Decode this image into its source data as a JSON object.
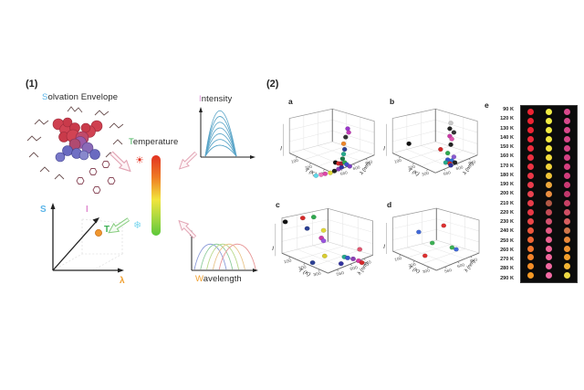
{
  "panel1": {
    "label": "(1)",
    "solvation_title": {
      "first": "S",
      "rest": "olvation Envelope",
      "first_color": "#5ab4e8"
    },
    "temperature_title": {
      "first": "T",
      "rest": "emperature",
      "first_color": "#3cb054"
    },
    "intensity_title": {
      "first": "I",
      "rest": "ntensity",
      "first_color": "#d990d4"
    },
    "wavelength_title": {
      "first": "W",
      "rest": "avelength",
      "first_color": "#f0a030"
    },
    "icons": {
      "hot": "☀",
      "cold": "❄",
      "hot_color": "#e03020",
      "cold_color": "#7fd8ee"
    },
    "gradient_bar": {
      "top_color": "#e23222",
      "mid_color": "#f2e43c",
      "bottom_color": "#5cc83a"
    },
    "axes3d": {
      "y_axis": "S",
      "diagonal_axis": "I",
      "x_axis": "λ",
      "point": "T",
      "y_color": "#5ab4e8",
      "diag_color": "#e08ad0",
      "x_color": "#f0a030",
      "point_color": "#3cb054",
      "dot_color": "#f0962e"
    },
    "intensity_plot": {
      "curve_color": "#5aa5c8",
      "curve_count": 7
    },
    "wavelength_plot": {
      "curve_colors": [
        "#8a9ad8",
        "#8ccb9a",
        "#b8d888",
        "#e8c388",
        "#e89898"
      ]
    }
  },
  "panel2": {
    "label": "(2)"
  },
  "chart_data": [
    {
      "id": "a",
      "label": "a",
      "type": "scatter3d",
      "xlabel": "T (K)",
      "ylabel": "λ (nm)",
      "zlabel": "I",
      "x_ticks": [
        "100",
        "200",
        "300"
      ],
      "y_ticks": [
        "560",
        "600",
        "640"
      ],
      "points": [
        [
          36,
          79,
          "#5fd8ea"
        ],
        [
          41,
          78,
          "#ee77bb"
        ],
        [
          45,
          77,
          "#dd44aa"
        ],
        [
          50,
          76,
          "#e0d838"
        ],
        [
          54,
          74,
          "#222222"
        ],
        [
          58,
          72,
          "#8a3fb5"
        ],
        [
          61,
          70,
          "#32339f"
        ],
        [
          55,
          65,
          "#111111"
        ],
        [
          58,
          66,
          "#d42a2a"
        ],
        [
          61,
          66,
          "#a32136"
        ],
        [
          64,
          65,
          "#2fa84e"
        ],
        [
          66,
          67,
          "#3a55cc"
        ],
        [
          69,
          69,
          "#7a3fc0"
        ],
        [
          62,
          61,
          "#1f7a48"
        ],
        [
          63,
          56,
          "#27a98c"
        ],
        [
          64,
          51,
          "#2b3f93"
        ],
        [
          63,
          45,
          "#ec862a"
        ],
        [
          65,
          38,
          "#333333"
        ],
        [
          68,
          33,
          "#c43ab8"
        ],
        [
          67,
          29,
          "#9a35c9"
        ]
      ]
    },
    {
      "id": "b",
      "label": "b",
      "type": "scatter3d",
      "xlabel": "T (K)",
      "ylabel": "λ (nm)",
      "zlabel": "I",
      "x_ticks": [
        "100",
        "200",
        "300"
      ],
      "y_ticks": [
        "560",
        "600",
        "640"
      ],
      "points": [
        [
          67,
          23,
          "#c9c9c9"
        ],
        [
          66,
          29,
          "#222222"
        ],
        [
          70,
          33,
          "#333333"
        ],
        [
          66,
          37,
          "#cc3aa8"
        ],
        [
          68,
          40,
          "#e055b0"
        ],
        [
          67,
          46,
          "#222222"
        ],
        [
          57,
          51,
          "#d42a2a"
        ],
        [
          64,
          55,
          "#2fa84e"
        ],
        [
          26,
          45,
          "#111111"
        ],
        [
          70,
          59,
          "#8a5ad0"
        ],
        [
          64,
          62,
          "#3a55cc"
        ],
        [
          68,
          63,
          "#2b6fd4"
        ],
        [
          62,
          65,
          "#27a98c"
        ],
        [
          66,
          66,
          "#d42a2a"
        ],
        [
          71,
          65,
          "#222222"
        ],
        [
          67,
          68,
          "#32339f"
        ]
      ]
    },
    {
      "id": "c",
      "label": "c",
      "type": "scatter3d",
      "xlabel": "T (K)",
      "ylabel": "λ (nm)",
      "zlabel": "I",
      "x_ticks": [
        "100",
        "200",
        "300"
      ],
      "y_ticks": [
        "560",
        "600",
        "640"
      ],
      "points": [
        [
          13,
          22,
          "#111111"
        ],
        [
          29,
          18,
          "#d42a2a"
        ],
        [
          39,
          17,
          "#2fa84e"
        ],
        [
          33,
          29,
          "#2b3f93"
        ],
        [
          48,
          31,
          "#e0d838"
        ],
        [
          46,
          39,
          "#cc3aa8"
        ],
        [
          48,
          42,
          "#9a55dd"
        ],
        [
          81,
          51,
          "#e05570"
        ],
        [
          49,
          58,
          "#d8cc30"
        ],
        [
          67,
          59,
          "#27a98c"
        ],
        [
          70,
          60,
          "#3a55cc"
        ],
        [
          75,
          61,
          "#8a3fb5"
        ],
        [
          80,
          63,
          "#d838a0"
        ],
        [
          83,
          65,
          "#d42a2a"
        ],
        [
          38,
          65,
          "#2b3f93"
        ],
        [
          64,
          66,
          "#32339f"
        ]
      ]
    },
    {
      "id": "d",
      "label": "d",
      "type": "scatter3d",
      "xlabel": "T (K)",
      "ylabel": "λ (nm)",
      "zlabel": "I",
      "x_ticks": [
        "100",
        "200",
        "300"
      ],
      "y_ticks": [
        "560",
        "600",
        "640"
      ],
      "points": [
        [
          35,
          34,
          "#4169d8"
        ],
        [
          59,
          27,
          "#dc3030"
        ],
        [
          48,
          46,
          "#3cb054"
        ],
        [
          67,
          51,
          "#3cb054"
        ],
        [
          71,
          53,
          "#4169d8"
        ],
        [
          41,
          60,
          "#dc3030"
        ]
      ]
    },
    {
      "id": "e",
      "label": "e",
      "type": "color_table",
      "unit": "K",
      "rows": [
        {
          "temp": "90 K",
          "dots": [
            "#ee2433",
            "#f3ee45",
            "#d8498c"
          ]
        },
        {
          "temp": "120 K",
          "dots": [
            "#ee2433",
            "#f3ee45",
            "#d8498c"
          ]
        },
        {
          "temp": "130 K",
          "dots": [
            "#ee2433",
            "#f3ec42",
            "#d8478a"
          ]
        },
        {
          "temp": "140 K",
          "dots": [
            "#ed2a3a",
            "#f3e940",
            "#d74688"
          ]
        },
        {
          "temp": "150 K",
          "dots": [
            "#ed2d3d",
            "#f2e43e",
            "#d64486"
          ]
        },
        {
          "temp": "160 K",
          "dots": [
            "#ec3040",
            "#f2dd3c",
            "#d54284"
          ]
        },
        {
          "temp": "170 K",
          "dots": [
            "#ec3343",
            "#f1d33a",
            "#d44080"
          ]
        },
        {
          "temp": "180 K",
          "dots": [
            "#eb3747",
            "#efc338",
            "#d23d7c"
          ]
        },
        {
          "temp": "190 K",
          "dots": [
            "#ea3c4c",
            "#eca73c",
            "#cc3a74"
          ]
        },
        {
          "temp": "200 K",
          "dots": [
            "#e9424f",
            "#e98e40",
            "#c2386c"
          ]
        },
        {
          "temp": "210 K",
          "dots": [
            "#e73d4a",
            "#b25845",
            "#c84166"
          ]
        },
        {
          "temp": "220 K",
          "dots": [
            "#e83946",
            "#c44b56",
            "#ce4f64"
          ]
        },
        {
          "temp": "230 K",
          "dots": [
            "#ea4748",
            "#d45270",
            "#d75f60"
          ]
        },
        {
          "temp": "240 K",
          "dots": [
            "#ee573c",
            "#e55a84",
            "#d0764a"
          ]
        },
        {
          "temp": "250 K",
          "dots": [
            "#f16634",
            "#ec6190",
            "#e8883a"
          ]
        },
        {
          "temp": "260 K",
          "dots": [
            "#f3762e",
            "#ef6498",
            "#f09432"
          ]
        },
        {
          "temp": "270 K",
          "dots": [
            "#f4832a",
            "#f1669c",
            "#f4a02c"
          ]
        },
        {
          "temp": "280 K",
          "dots": [
            "#f58e27",
            "#f268a0",
            "#f2b434"
          ]
        },
        {
          "temp": "290 K",
          "dots": [
            "#f69a25",
            "#f36aa4",
            "#ecd844"
          ]
        }
      ]
    }
  ]
}
